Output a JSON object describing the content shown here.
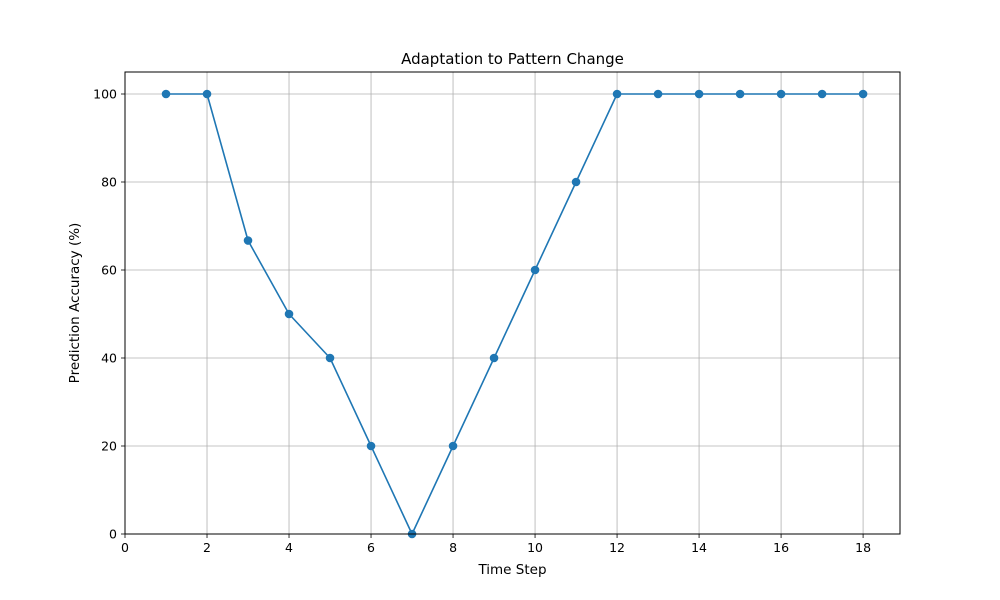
{
  "chart_data": {
    "type": "line",
    "title": "Adaptation to Pattern Change",
    "xlabel": "Time Step",
    "ylabel": "Prediction Accuracy (%)",
    "xlim": [
      0,
      18.9
    ],
    "ylim": [
      0,
      105
    ],
    "xticks": [
      0,
      2,
      4,
      6,
      8,
      10,
      12,
      14,
      16,
      18
    ],
    "yticks": [
      0,
      20,
      40,
      60,
      80,
      100
    ],
    "grid": true,
    "marker": "circle",
    "line_color": "#1f77b4",
    "grid_color": "#b0b0b0",
    "series": [
      {
        "x": [
          1,
          2,
          3,
          4,
          5,
          6,
          7,
          8,
          9,
          10,
          11,
          12,
          13,
          14,
          15,
          16,
          17,
          18
        ],
        "values": [
          100,
          100,
          66.7,
          50,
          40,
          20,
          0,
          20,
          40,
          60,
          80,
          100,
          100,
          100,
          100,
          100,
          100,
          100
        ]
      }
    ]
  }
}
